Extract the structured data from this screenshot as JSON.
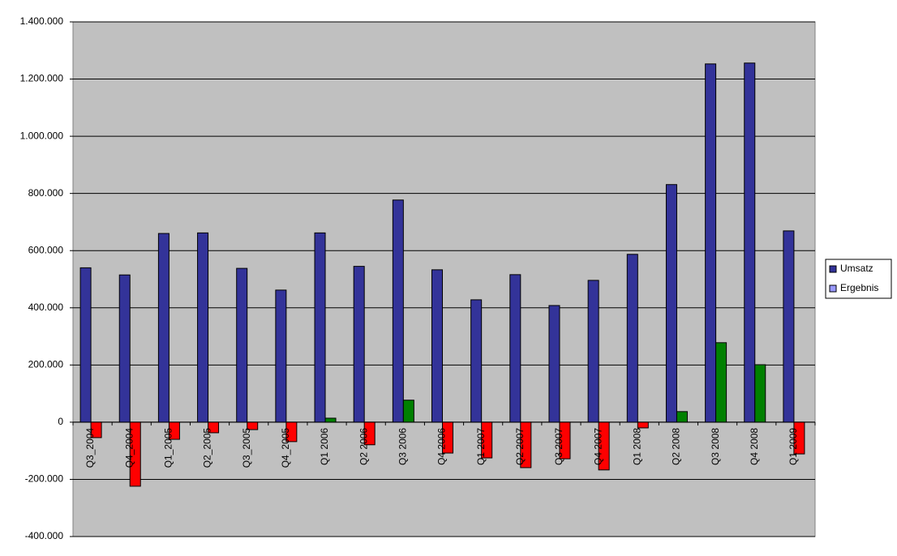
{
  "chart_data": {
    "type": "bar",
    "categories": [
      "Q3_2004",
      "Q4_2004",
      "Q1_2005",
      "Q2_2005",
      "Q3_2005",
      "Q4_2005",
      "Q1 2006",
      "Q2 2006",
      "Q3 2006",
      "Q4 2006",
      "Q1 2007",
      "Q2 2007",
      "Q3 2007",
      "Q4 2007",
      "Q1 2008",
      "Q2 2008",
      "Q3 2008",
      "Q4 2008",
      "Q1 2009"
    ],
    "series": [
      {
        "name": "Umsatz",
        "color": "#333399",
        "values": [
          540000,
          515000,
          660000,
          662000,
          538000,
          462000,
          662000,
          545000,
          777000,
          533000,
          428000,
          516000,
          408000,
          496000,
          587000,
          831000,
          1253000,
          1256000,
          669000
        ]
      },
      {
        "name": "Ergebnis",
        "color": "#9999ff",
        "positive_color": "#008000",
        "negative_color": "#ff0000",
        "values": [
          -54000,
          -224000,
          -60000,
          -37000,
          -26000,
          -68000,
          14000,
          -79000,
          77000,
          -108000,
          -125000,
          -159000,
          -128000,
          -167000,
          -20000,
          37000,
          278000,
          201000,
          -111000
        ]
      }
    ],
    "ylim": [
      -400000,
      1400000
    ],
    "yticks": [
      {
        "value": -400000,
        "label": "-400.000"
      },
      {
        "value": -200000,
        "label": "-200.000"
      },
      0,
      {
        "value": 200000,
        "label": "200.000"
      },
      {
        "value": 400000,
        "label": "400.000"
      },
      {
        "value": 600000,
        "label": "600.000"
      },
      {
        "value": 800000,
        "label": "800.000"
      },
      {
        "value": 1000000,
        "label": "1.000.000"
      },
      {
        "value": 1200000,
        "label": "1.200.000"
      },
      {
        "value": 1400000,
        "label": "1.400.000"
      }
    ],
    "grid": true,
    "plot_background": "#c0c0c0",
    "legend": "right"
  }
}
